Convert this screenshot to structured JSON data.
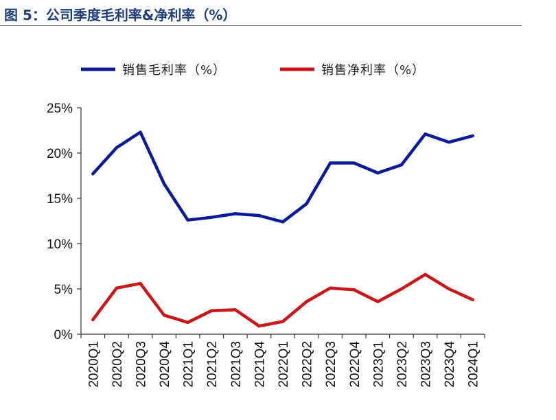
{
  "title": "图 5：公司季度毛利率&净利率（%）",
  "colors": {
    "gross": "#0a1a9a",
    "net": "#cc1518",
    "axis": "#333333"
  },
  "chart_data": {
    "type": "line",
    "x": [
      "2020Q1",
      "2020Q2",
      "2020Q3",
      "2020Q4",
      "2021Q1",
      "2021Q2",
      "2021Q3",
      "2021Q4",
      "2022Q1",
      "2022Q2",
      "2022Q3",
      "2022Q4",
      "2023Q1",
      "2023Q2",
      "2023Q3",
      "2023Q4",
      "2024Q1"
    ],
    "ylim": [
      0,
      25
    ],
    "yticks": [
      "0%",
      "5%",
      "10%",
      "15%",
      "20%",
      "25%"
    ],
    "legend_position": "top",
    "grid": false,
    "series": [
      {
        "name": "销售毛利率（%）",
        "values": [
          17.7,
          20.6,
          22.3,
          16.6,
          12.6,
          12.9,
          13.3,
          13.1,
          12.4,
          14.4,
          18.9,
          18.9,
          17.8,
          18.7,
          22.1,
          21.2,
          21.9
        ]
      },
      {
        "name": "销售净利率（%）",
        "values": [
          1.6,
          5.1,
          5.6,
          2.1,
          1.3,
          2.6,
          2.7,
          0.9,
          1.4,
          3.6,
          5.1,
          4.9,
          3.6,
          5.0,
          6.6,
          5.0,
          3.8
        ]
      }
    ]
  }
}
